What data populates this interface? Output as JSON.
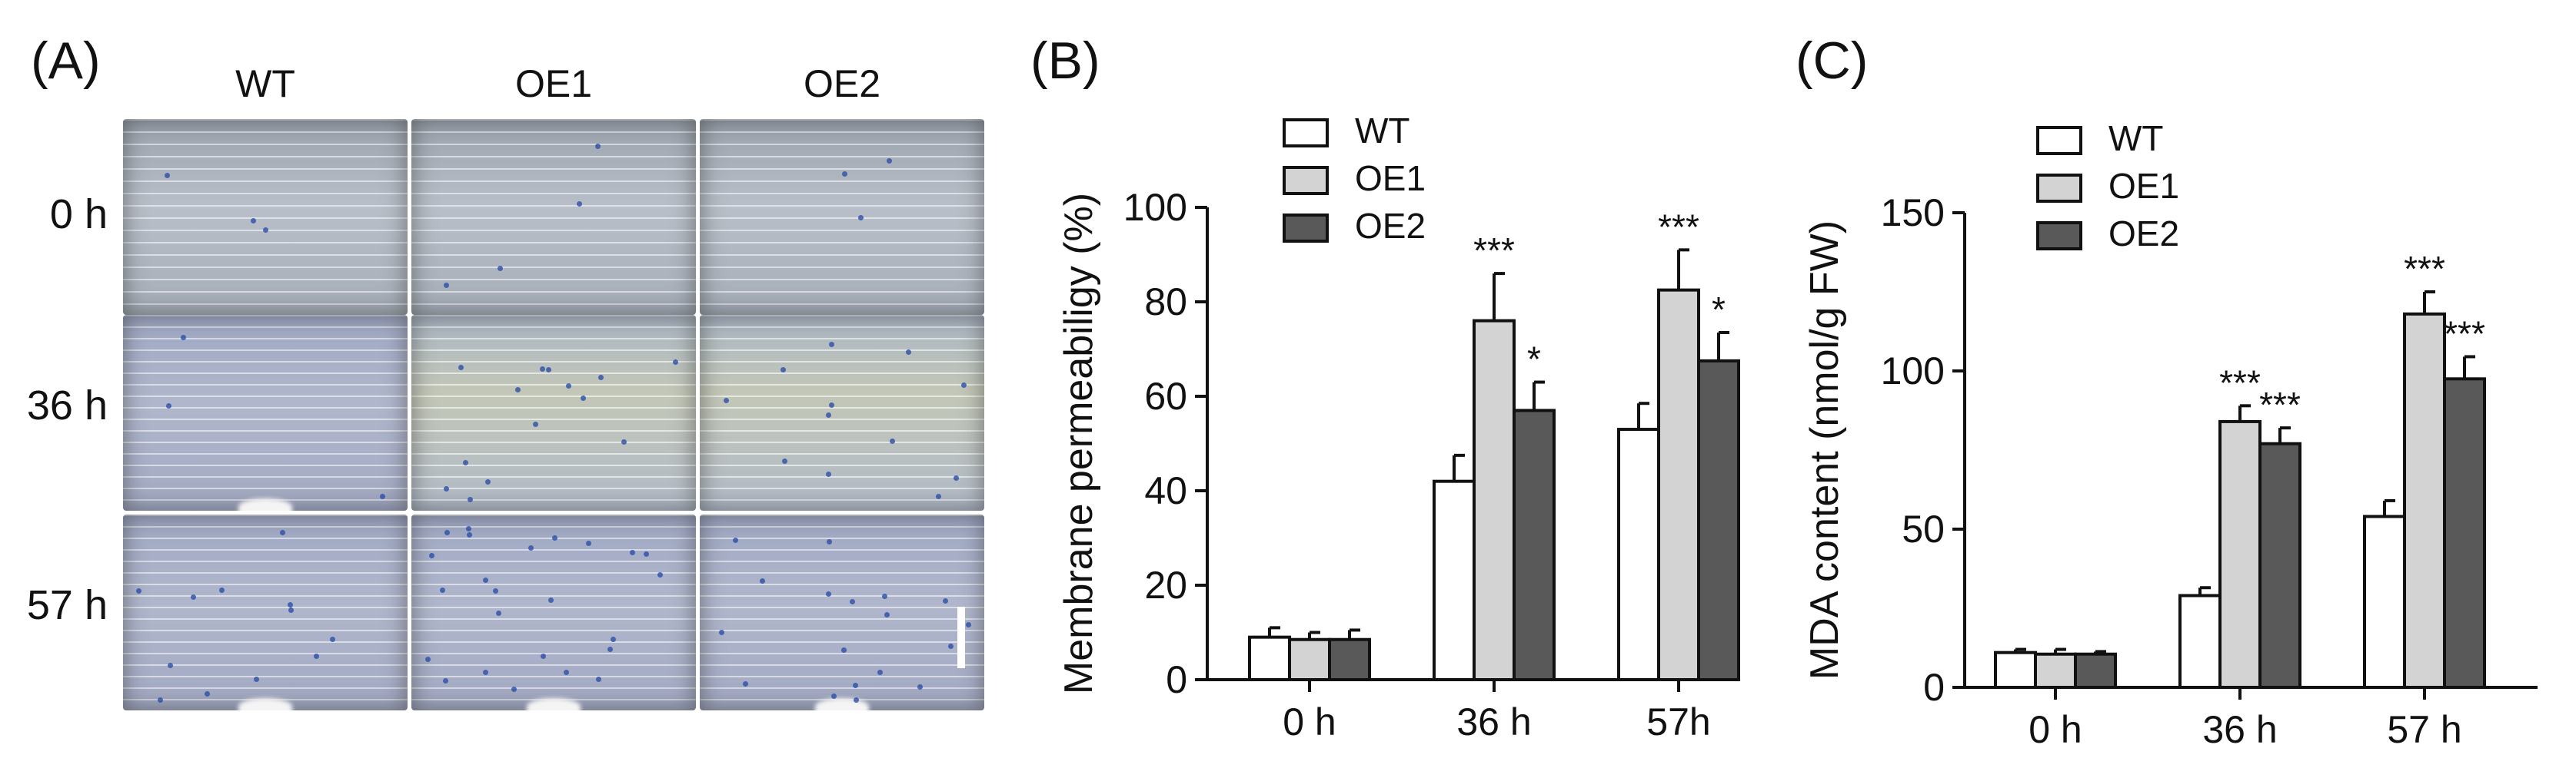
{
  "panels": {
    "a": {
      "label": "(A)",
      "columns": [
        "WT",
        "OE1",
        "OE2"
      ],
      "rows": [
        "0 h",
        "36 h",
        "57 h"
      ]
    },
    "b": {
      "label": "(B)"
    },
    "c": {
      "label": "(C)"
    }
  },
  "colors": {
    "WT": "#ffffff",
    "OE1": "#d3d3d3",
    "OE2": "#595959",
    "stain": "#2c4fa8"
  },
  "chart_data": [
    {
      "type": "bar",
      "panel": "B",
      "ylabel": "Membrane permeabiligy (%)",
      "xlabel": "",
      "ylim": [
        0,
        100
      ],
      "yticks": [
        0,
        20,
        40,
        60,
        80,
        100
      ],
      "categories": [
        "0 h",
        "36 h",
        "57h"
      ],
      "legend_position": "top-left",
      "series": [
        {
          "name": "WT",
          "values": [
            9,
            42,
            53
          ],
          "errors": [
            2,
            5.5,
            5.5
          ],
          "sig": [
            "",
            "",
            ""
          ]
        },
        {
          "name": "OE1",
          "values": [
            8.5,
            76,
            82.5
          ],
          "errors": [
            1.5,
            10,
            8.5
          ],
          "sig": [
            "",
            "***",
            "***"
          ]
        },
        {
          "name": "OE2",
          "values": [
            8.5,
            57,
            67.5
          ],
          "errors": [
            2,
            6,
            6
          ],
          "sig": [
            "",
            "*",
            "*"
          ]
        }
      ]
    },
    {
      "type": "bar",
      "panel": "C",
      "ylabel": "MDA content (nmol/g FW)",
      "xlabel": "",
      "ylim": [
        0,
        150
      ],
      "yticks": [
        0,
        50,
        100,
        150
      ],
      "categories": [
        "0 h",
        "36 h",
        "57 h"
      ],
      "legend_position": "top-left",
      "series": [
        {
          "name": "WT",
          "values": [
            11,
            29,
            54
          ],
          "errors": [
            1,
            2.5,
            5
          ],
          "sig": [
            "",
            "",
            ""
          ]
        },
        {
          "name": "OE1",
          "values": [
            10.5,
            84,
            118
          ],
          "errors": [
            1.5,
            5,
            7
          ],
          "sig": [
            "",
            "***",
            "***"
          ]
        },
        {
          "name": "OE2",
          "values": [
            10.5,
            77,
            97.5
          ],
          "errors": [
            0.8,
            5,
            7
          ],
          "sig": [
            "",
            "***",
            "***"
          ]
        }
      ]
    }
  ]
}
